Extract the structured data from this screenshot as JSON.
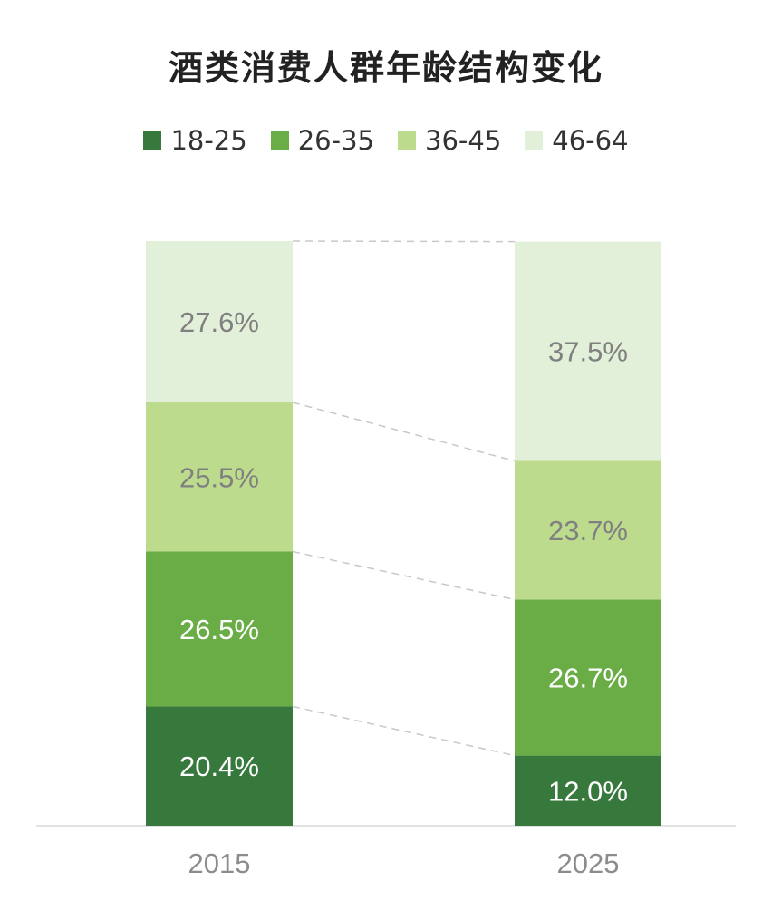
{
  "chart_data": {
    "type": "bar",
    "stacked": true,
    "normalized_percent": true,
    "title": "酒类消费人群年龄结构变化",
    "categories": [
      "2015",
      "2025"
    ],
    "series": [
      {
        "name": "18-25",
        "values": [
          20.4,
          12.0
        ],
        "labels": [
          "20.4%",
          "12.0%"
        ],
        "color": "#37783c",
        "label_color": "#ffffff"
      },
      {
        "name": "26-35",
        "values": [
          26.5,
          26.7
        ],
        "labels": [
          "26.5%",
          "26.7%"
        ],
        "color": "#6aad46",
        "label_color": "#ffffff"
      },
      {
        "name": "36-45",
        "values": [
          25.5,
          23.7
        ],
        "labels": [
          "25.5%",
          "23.7%"
        ],
        "color": "#bcdb8d",
        "label_color": "#808080"
      },
      {
        "name": "46-64",
        "values": [
          27.6,
          37.5
        ],
        "labels": [
          "27.6%",
          "37.5%"
        ],
        "color": "#e2efd9",
        "label_color": "#808080"
      }
    ],
    "ylim": [
      0,
      100
    ],
    "legend": "top",
    "grid": false,
    "connector_lines": "dashed"
  }
}
